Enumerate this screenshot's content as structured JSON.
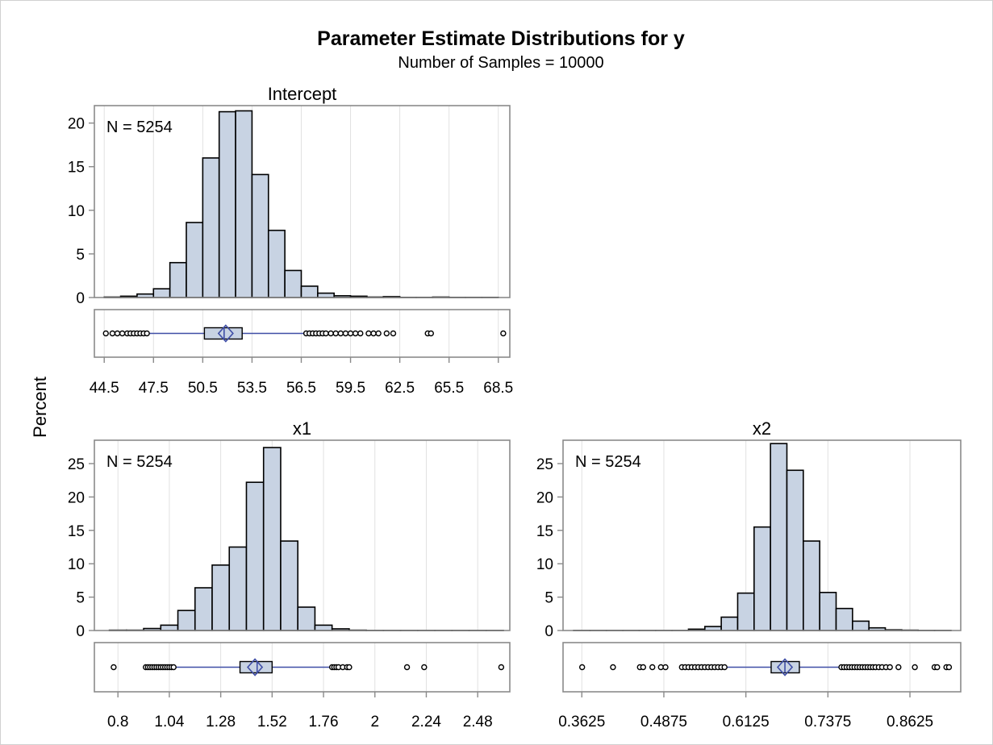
{
  "title": "Parameter Estimate Distributions for y",
  "subtitle": "Number of Samples = 10000",
  "ylabel": "Percent",
  "colors": {
    "bar_fill": "#c8d3e3",
    "bar_stroke": "#000000",
    "grid": "#e1e1e1",
    "axis": "#8a8a8a",
    "box_line": "#3f4ea6",
    "box_fill": "#c8d3e3"
  },
  "chart_data": [
    {
      "type": "bar",
      "name": "Intercept",
      "n_label": "N = 5254",
      "bin_width": 1,
      "bins": [
        {
          "x": 45,
          "value": 0.05
        },
        {
          "x": 46,
          "value": 0.15
        },
        {
          "x": 47,
          "value": 0.4
        },
        {
          "x": 48,
          "value": 1.0
        },
        {
          "x": 49,
          "value": 4.0
        },
        {
          "x": 50,
          "value": 8.6
        },
        {
          "x": 51,
          "value": 16.0
        },
        {
          "x": 52,
          "value": 21.3
        },
        {
          "x": 53,
          "value": 21.4
        },
        {
          "x": 54,
          "value": 14.1
        },
        {
          "x": 55,
          "value": 7.7
        },
        {
          "x": 56,
          "value": 3.1
        },
        {
          "x": 57,
          "value": 1.3
        },
        {
          "x": 58,
          "value": 0.5
        },
        {
          "x": 59,
          "value": 0.2
        },
        {
          "x": 60,
          "value": 0.15
        },
        {
          "x": 61,
          "value": 0.05
        },
        {
          "x": 62,
          "value": 0.1
        },
        {
          "x": 63,
          "value": 0.02
        },
        {
          "x": 64,
          "value": 0.02
        },
        {
          "x": 65,
          "value": 0.05
        },
        {
          "x": 66,
          "value": 0.02
        },
        {
          "x": 67,
          "value": 0.02
        },
        {
          "x": 68,
          "value": 0.02
        }
      ],
      "xlim": [
        43.9,
        69.2
      ],
      "ylim": [
        0,
        22
      ],
      "yticks": [
        0,
        5,
        10,
        15,
        20
      ],
      "ytick_labels": [
        "0",
        "5",
        "10",
        "15",
        "20"
      ],
      "xticks": [
        44.5,
        47.5,
        50.5,
        53.5,
        56.5,
        59.5,
        62.5,
        65.5,
        68.5
      ],
      "xtick_labels": [
        "44.5",
        "47.5",
        "50.5",
        "53.5",
        "56.5",
        "59.5",
        "62.5",
        "65.5",
        "68.5"
      ],
      "boxplot": {
        "whisker_low": 47.2,
        "q1": 50.6,
        "median": 51.8,
        "mean": 51.9,
        "q3": 52.9,
        "whisker_high": 56.7,
        "outliers": [
          44.6,
          45.0,
          45.3,
          45.6,
          45.9,
          46.1,
          46.3,
          46.5,
          46.7,
          46.9,
          47.1,
          56.8,
          57.0,
          57.2,
          57.4,
          57.6,
          57.8,
          58.0,
          58.3,
          58.6,
          58.9,
          59.2,
          59.5,
          59.8,
          60.1,
          60.6,
          60.9,
          61.2,
          61.7,
          62.1,
          64.2,
          64.4,
          68.8
        ]
      }
    },
    {
      "type": "bar",
      "name": "x1",
      "n_label": "N = 5254",
      "bin_width": 0.08,
      "bins": [
        {
          "x": 0.8,
          "value": 0.05
        },
        {
          "x": 0.88,
          "value": 0.05
        },
        {
          "x": 0.96,
          "value": 0.3
        },
        {
          "x": 1.04,
          "value": 0.8
        },
        {
          "x": 1.12,
          "value": 3.0
        },
        {
          "x": 1.2,
          "value": 6.4
        },
        {
          "x": 1.28,
          "value": 9.8
        },
        {
          "x": 1.36,
          "value": 12.5
        },
        {
          "x": 1.44,
          "value": 22.2
        },
        {
          "x": 1.52,
          "value": 27.4
        },
        {
          "x": 1.6,
          "value": 13.4
        },
        {
          "x": 1.68,
          "value": 3.5
        },
        {
          "x": 1.76,
          "value": 0.8
        },
        {
          "x": 1.84,
          "value": 0.25
        },
        {
          "x": 1.92,
          "value": 0.05
        },
        {
          "x": 2.0,
          "value": 0.02
        },
        {
          "x": 2.08,
          "value": 0.02
        },
        {
          "x": 2.16,
          "value": 0.02
        },
        {
          "x": 2.24,
          "value": 0.02
        },
        {
          "x": 2.32,
          "value": 0.02
        },
        {
          "x": 2.4,
          "value": 0.02
        },
        {
          "x": 2.48,
          "value": 0.02
        },
        {
          "x": 2.56,
          "value": 0.02
        }
      ],
      "xlim": [
        0.69,
        2.63
      ],
      "ylim": [
        0,
        28.5
      ],
      "yticks": [
        0,
        5,
        10,
        15,
        20,
        25
      ],
      "ytick_labels": [
        "0",
        "5",
        "10",
        "15",
        "20",
        "25"
      ],
      "xticks": [
        0.8,
        1.04,
        1.28,
        1.52,
        1.76,
        2,
        2.24,
        2.48
      ],
      "xtick_labels": [
        "0.8",
        "1.04",
        "1.28",
        "1.52",
        "1.76",
        "2",
        "2.24",
        "2.48"
      ],
      "boxplot": {
        "whisker_low": 1.07,
        "q1": 1.37,
        "median": 1.45,
        "mean": 1.44,
        "q3": 1.52,
        "whisker_high": 1.79,
        "outliers": [
          0.78,
          0.93,
          0.94,
          0.95,
          0.96,
          0.97,
          0.98,
          0.99,
          1.0,
          1.01,
          1.02,
          1.03,
          1.04,
          1.05,
          1.06,
          1.8,
          1.81,
          1.82,
          1.83,
          1.85,
          1.87,
          1.88,
          2.15,
          2.23,
          2.59
        ]
      }
    },
    {
      "type": "bar",
      "name": "x2",
      "n_label": "N = 5254",
      "bin_width": 0.025,
      "bins": [
        {
          "x": 0.3625,
          "value": 0.02
        },
        {
          "x": 0.3875,
          "value": 0.02
        },
        {
          "x": 0.4125,
          "value": 0.02
        },
        {
          "x": 0.4375,
          "value": 0.02
        },
        {
          "x": 0.4625,
          "value": 0.02
        },
        {
          "x": 0.4875,
          "value": 0.02
        },
        {
          "x": 0.5125,
          "value": 0.02
        },
        {
          "x": 0.5375,
          "value": 0.2
        },
        {
          "x": 0.5625,
          "value": 0.6
        },
        {
          "x": 0.5875,
          "value": 2.0
        },
        {
          "x": 0.6125,
          "value": 5.6
        },
        {
          "x": 0.6375,
          "value": 15.5
        },
        {
          "x": 0.6625,
          "value": 28.0
        },
        {
          "x": 0.6875,
          "value": 24.0
        },
        {
          "x": 0.7125,
          "value": 13.4
        },
        {
          "x": 0.7375,
          "value": 5.7
        },
        {
          "x": 0.7625,
          "value": 3.3
        },
        {
          "x": 0.7875,
          "value": 1.4
        },
        {
          "x": 0.8125,
          "value": 0.4
        },
        {
          "x": 0.8375,
          "value": 0.1
        },
        {
          "x": 0.8625,
          "value": 0.05
        },
        {
          "x": 0.8875,
          "value": 0.02
        },
        {
          "x": 0.9125,
          "value": 0.02
        }
      ],
      "xlim": [
        0.3339,
        0.9399
      ],
      "ylim": [
        0,
        28.5
      ],
      "yticks": [
        0,
        5,
        10,
        15,
        20,
        25
      ],
      "ytick_labels": [
        "0",
        "5",
        "10",
        "15",
        "20",
        "25"
      ],
      "xticks": [
        0.3625,
        0.4875,
        0.6125,
        0.7375,
        0.8625
      ],
      "xtick_labels": [
        "0.3625",
        "0.4875",
        "0.6125",
        "0.7375",
        "0.8625"
      ],
      "boxplot": {
        "whisker_low": 0.582,
        "q1": 0.651,
        "median": 0.672,
        "mean": 0.672,
        "q3": 0.694,
        "whisker_high": 0.755,
        "outliers": [
          0.363,
          0.41,
          0.451,
          0.456,
          0.47,
          0.483,
          0.49,
          0.515,
          0.52,
          0.525,
          0.53,
          0.535,
          0.54,
          0.545,
          0.55,
          0.555,
          0.56,
          0.565,
          0.57,
          0.575,
          0.58,
          0.758,
          0.762,
          0.766,
          0.77,
          0.774,
          0.778,
          0.782,
          0.786,
          0.79,
          0.794,
          0.798,
          0.802,
          0.806,
          0.81,
          0.815,
          0.82,
          0.826,
          0.832,
          0.845,
          0.87,
          0.9,
          0.904,
          0.918,
          0.922
        ]
      }
    }
  ]
}
